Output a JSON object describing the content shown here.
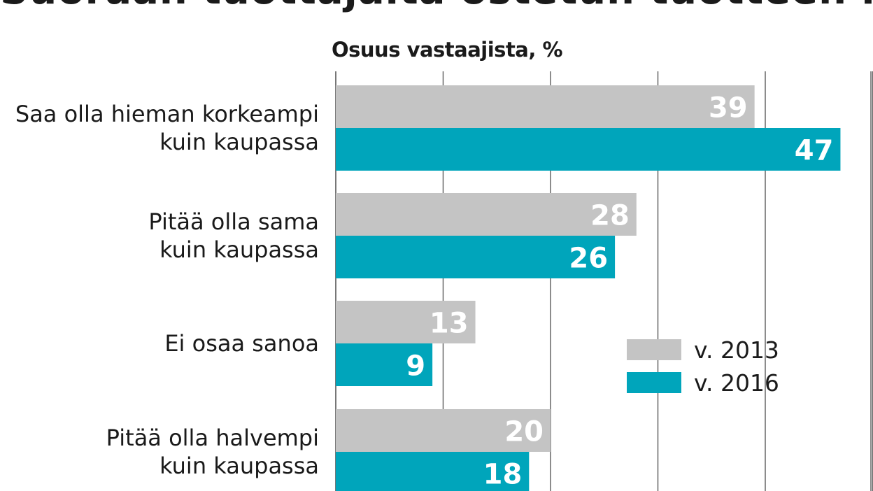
{
  "chart_data": {
    "type": "bar",
    "orientation": "horizontal",
    "title": "Suoraan tuottajalta ostetun tuotteen hinta",
    "subtitle": "Osuus vastaajista, %",
    "categories": [
      [
        "Saa olla hieman korkeampi",
        "kuin kaupassa"
      ],
      [
        "Pitää olla sama",
        "kuin kaupassa"
      ],
      [
        "Ei osaa sanoa"
      ],
      [
        "Pitää olla halvempi",
        "kuin kaupassa"
      ]
    ],
    "series": [
      {
        "name": "v. 2013",
        "color": "#c4c4c4",
        "values": [
          39,
          28,
          13,
          20
        ]
      },
      {
        "name": "v. 2016",
        "color": "#00a5bb",
        "values": [
          47,
          26,
          9,
          18
        ]
      }
    ],
    "xlim": [
      0,
      50
    ],
    "grid": true,
    "grid_step": 10,
    "legend_position": "right"
  }
}
